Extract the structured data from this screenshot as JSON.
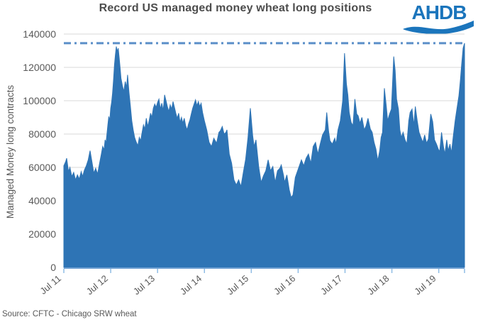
{
  "title": "Record US managed money wheat long positions",
  "logo": {
    "text": "AHDB"
  },
  "source_note": "Source: CFTC - Chicago SRW wheat",
  "colors": {
    "area_fill": "#2e74b5",
    "record_line": "#5b8fc8",
    "axis_line": "#6fa0d2",
    "tick_mark": "#8fbce4",
    "gridline": "#d9d9d9",
    "axis_text": "#595959",
    "title_text": "#4d4d4d",
    "logo_blue": "#1b75bc"
  },
  "chart_data": {
    "type": "area",
    "title": "Record US managed money wheat long positions",
    "xlabel": "",
    "ylabel": "Managed Money long contracts",
    "grid": "horizontal",
    "legend": "none",
    "ylim": [
      0,
      140000
    ],
    "y_ticks": [
      0,
      20000,
      40000,
      60000,
      80000,
      100000,
      120000,
      140000
    ],
    "x_tick_labels": [
      "Jul 11",
      "Jul 12",
      "Jul 13",
      "Jul 14",
      "Jul 15",
      "Jul 16",
      "Jul 17",
      "Jul 18",
      "Jul 19"
    ],
    "x_tick_positions": [
      0,
      1,
      2,
      3,
      4,
      5,
      6,
      7,
      8
    ],
    "xlim": [
      0,
      8.55
    ],
    "record_line_value": 134500,
    "record_line_style": "dash-dot",
    "series": {
      "x": [
        0,
        0.04,
        0.06,
        0.1,
        0.13,
        0.17,
        0.21,
        0.25,
        0.29,
        0.33,
        0.37,
        0.4,
        0.44,
        0.48,
        0.52,
        0.56,
        0.6,
        0.64,
        0.68,
        0.72,
        0.76,
        0.8,
        0.83,
        0.86,
        0.88,
        0.9,
        0.92,
        0.94,
        0.96,
        0.98,
        1.0,
        1.02,
        1.04,
        1.06,
        1.08,
        1.1,
        1.12,
        1.14,
        1.16,
        1.18,
        1.2,
        1.22,
        1.25,
        1.28,
        1.31,
        1.34,
        1.36,
        1.39,
        1.42,
        1.45,
        1.48,
        1.51,
        1.54,
        1.58,
        1.61,
        1.64,
        1.67,
        1.7,
        1.73,
        1.76,
        1.79,
        1.82,
        1.85,
        1.88,
        1.91,
        1.94,
        1.97,
        2.0,
        2.03,
        2.06,
        2.09,
        2.12,
        2.15,
        2.18,
        2.21,
        2.24,
        2.27,
        2.3,
        2.33,
        2.36,
        2.39,
        2.42,
        2.45,
        2.48,
        2.51,
        2.54,
        2.57,
        2.6,
        2.63,
        2.66,
        2.69,
        2.72,
        2.75,
        2.78,
        2.81,
        2.84,
        2.87,
        2.9,
        2.93,
        2.96,
        3.0,
        3.05,
        3.1,
        3.15,
        3.2,
        3.26,
        3.31,
        3.34,
        3.38,
        3.42,
        3.46,
        3.48,
        3.53,
        3.58,
        3.63,
        3.68,
        3.73,
        3.78,
        3.83,
        3.88,
        3.93,
        3.98,
        4.03,
        4.06,
        4.1,
        4.16,
        4.21,
        4.26,
        4.31,
        4.36,
        4.41,
        4.46,
        4.51,
        4.56,
        4.61,
        4.64,
        4.69,
        4.71,
        4.76,
        4.81,
        4.85,
        4.89,
        4.94,
        4.99,
        5.07,
        5.12,
        5.17,
        5.22,
        5.27,
        5.32,
        5.37,
        5.42,
        5.47,
        5.52,
        5.58,
        5.61,
        5.65,
        5.68,
        5.73,
        5.78,
        5.81,
        5.85,
        5.9,
        5.95,
        5.99,
        6.03,
        6.06,
        6.09,
        6.13,
        6.17,
        6.21,
        6.25,
        6.28,
        6.32,
        6.36,
        6.41,
        6.45,
        6.49,
        6.54,
        6.58,
        6.62,
        6.66,
        6.7,
        6.74,
        6.77,
        6.8,
        6.84,
        6.88,
        6.91,
        6.95,
        6.99,
        7.04,
        7.07,
        7.1,
        7.14,
        7.17,
        7.2,
        7.24,
        7.28,
        7.32,
        7.36,
        7.39,
        7.43,
        7.47,
        7.5,
        7.54,
        7.58,
        7.62,
        7.66,
        7.7,
        7.74,
        7.78,
        7.83,
        7.87,
        7.91,
        7.95,
        7.99,
        8.02,
        8.06,
        8.1,
        8.13,
        8.17,
        8.2,
        8.24,
        8.27,
        8.31,
        8.35,
        8.39,
        8.43,
        8.46,
        8.49,
        8.52,
        8.55
      ],
      "y": [
        61000,
        63500,
        65500,
        57500,
        60000,
        54500,
        57000,
        52500,
        55500,
        53000,
        57500,
        54500,
        58500,
        61000,
        64500,
        70000,
        63500,
        56500,
        59500,
        56000,
        62000,
        68000,
        72500,
        70500,
        76500,
        74500,
        80000,
        85500,
        90500,
        88000,
        95500,
        99000,
        104500,
        112000,
        121500,
        127500,
        132500,
        129500,
        131500,
        126000,
        120000,
        113500,
        109000,
        105500,
        111500,
        108000,
        115500,
        105000,
        97000,
        88000,
        82500,
        78000,
        75500,
        73000,
        78000,
        76000,
        81000,
        85500,
        83000,
        89500,
        84500,
        88000,
        92500,
        90000,
        95500,
        98000,
        96000,
        99000,
        101000,
        95000,
        98500,
        94000,
        103500,
        100000,
        96500,
        93500,
        97500,
        95000,
        99500,
        96000,
        92500,
        89500,
        92500,
        87000,
        90000,
        86500,
        89500,
        85000,
        82500,
        86000,
        88500,
        92000,
        95500,
        98000,
        100500,
        97000,
        99500,
        96500,
        98500,
        93000,
        88000,
        82500,
        75000,
        72500,
        77500,
        74500,
        81000,
        82000,
        84500,
        80000,
        81000,
        82500,
        68000,
        62500,
        52500,
        49500,
        52500,
        48500,
        57000,
        65000,
        78000,
        95500,
        79000,
        72500,
        76500,
        60000,
        51000,
        55000,
        58000,
        64500,
        58000,
        60500,
        51000,
        58000,
        59500,
        61500,
        55000,
        51000,
        55500,
        46500,
        42000,
        43500,
        54000,
        58000,
        64500,
        61000,
        65500,
        68000,
        62500,
        72500,
        75000,
        68000,
        74000,
        79500,
        82500,
        93000,
        81500,
        76000,
        74000,
        77500,
        74000,
        82500,
        88000,
        100000,
        128500,
        110000,
        103500,
        93000,
        87000,
        85000,
        101000,
        92000,
        91000,
        86500,
        90000,
        82500,
        85000,
        89500,
        83000,
        81000,
        75000,
        71000,
        64000,
        70000,
        78000,
        81000,
        107500,
        97000,
        88000,
        92000,
        95000,
        126500,
        118000,
        101000,
        95000,
        82500,
        78000,
        81000,
        76500,
        74000,
        88000,
        93000,
        95000,
        85000,
        96500,
        88000,
        81000,
        78000,
        75000,
        79500,
        74500,
        77000,
        92000,
        87500,
        76500,
        74000,
        71000,
        69500,
        81000,
        72500,
        68000,
        76500,
        70000,
        74000,
        68500,
        78500,
        88000,
        95500,
        103000,
        112000,
        122000,
        131500,
        134500
      ]
    }
  }
}
